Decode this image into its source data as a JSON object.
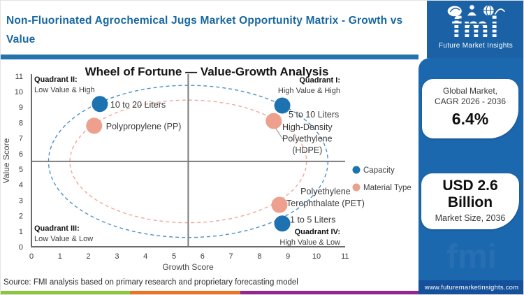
{
  "header": {
    "title": "Non-Fluorinated Agrochemical Jugs Market Opportunity Matrix - Growth vs Value"
  },
  "chart_data": {
    "type": "scatter",
    "title": "Wheel of Fortune — Value-Growth Analysis",
    "xlabel": "Growth Score",
    "ylabel": "Value Score",
    "xlim": [
      0,
      11
    ],
    "ylim": [
      0,
      11
    ],
    "x_ticks": [
      0,
      1,
      2,
      3,
      4,
      5,
      6,
      7,
      8,
      9,
      10,
      11
    ],
    "y_ticks": [
      0,
      1,
      2,
      3,
      4,
      5,
      6,
      7,
      8,
      9,
      10,
      11
    ],
    "quadrant_divider": {
      "x": 5.5,
      "y": 5.5
    },
    "quadrants": [
      {
        "name": "Quadrant I:",
        "desc": "High Value & High",
        "position": "top-right"
      },
      {
        "name": "Quadrant II:",
        "desc": "Low Value & High",
        "position": "top-left"
      },
      {
        "name": "Quadrant III:",
        "desc": "Low Value & Low",
        "position": "bottom-left"
      },
      {
        "name": "Quadrant IV:",
        "desc": "High Value & Low",
        "position": "bottom-right"
      }
    ],
    "series": [
      {
        "name": "Capacity",
        "color": "#1D72B2",
        "points": [
          {
            "label": "10 to 20 Liters",
            "x": 2.4,
            "y": 9.2,
            "lines": [
              "10 to 20 Liters"
            ],
            "anchor": "start",
            "dx": 15,
            "dy": 5
          },
          {
            "label": "5 to 10 Liters",
            "x": 8.8,
            "y": 9.1,
            "lines": [
              "5 to 10 Liters"
            ],
            "anchor": "start",
            "dx": 9,
            "dy": 17
          },
          {
            "label": "1 to 5 Liters",
            "x": 8.8,
            "y": 1.5,
            "lines": [
              "1 to 5 Liters"
            ],
            "anchor": "start",
            "dx": 11,
            "dy": -1
          }
        ]
      },
      {
        "name": "Material Type",
        "color": "#ECA08D",
        "points": [
          {
            "label": "Polypropylene (PP)",
            "x": 2.2,
            "y": 7.8,
            "lines": [
              "Polypropylene (PP)"
            ],
            "anchor": "start",
            "dx": 17,
            "dy": 5
          },
          {
            "label": "High-Density Polyethylene (HDPE)",
            "x": 8.5,
            "y": 8.1,
            "lines": [
              "High-Density",
              "Polyethylene",
              "(HDPE)"
            ],
            "anchor": "middle",
            "dx": 48,
            "dy": 13,
            "line_h": 16.5,
            "leader": true
          },
          {
            "label": "Polyethylene Terephthalate (PET)",
            "x": 8.7,
            "y": 2.7,
            "lines": [
              "Polyethylene",
              "Terephthalate (PET)"
            ],
            "anchor": "middle",
            "dx": 66,
            "dy": -15,
            "line_h": 17
          }
        ]
      }
    ],
    "rings": [
      {
        "series": "Capacity",
        "color": "#4A90C8",
        "cx": 5.5,
        "cy": 5.5,
        "rx": 4.9,
        "ry": 4.9
      },
      {
        "series": "Material Type",
        "color": "#F0A896",
        "cx": 5.5,
        "cy": 5.5,
        "rx": 4.15,
        "ry": 3.95
      }
    ],
    "legend": [
      {
        "label": "Capacity",
        "color": "#1D72B2"
      },
      {
        "label": "Material Type",
        "color": "#ECA08D"
      }
    ],
    "legend_position": "right"
  },
  "sidebar": {
    "logo": {
      "text": "fmi",
      "subtext": "Future Market Insights"
    },
    "cagr_card": {
      "line1": "Global Market,",
      "line2": "CAGR 2026 - 2036",
      "value": "6.4%"
    },
    "size_card": {
      "value_line1": "USD 2.6",
      "value_line2": "Billion",
      "label": "Market Size, 2036"
    },
    "website": "www.futuremarketinsights.com"
  },
  "footer": {
    "source": "Source: FMI analysis based on primary research and proprietary forecasting model",
    "strip_colors": [
      "#8CC63E",
      "#E87424",
      "#92278F"
    ]
  },
  "colors": {
    "header_title": "#1767A0",
    "title_bar": "#2472AE",
    "logo_block": "#1A61A5",
    "sidebar_panel": "#1C68AE",
    "website_strip": "#15509A",
    "capacity_point": "#1D72B2",
    "material_point": "#ECA08D"
  }
}
